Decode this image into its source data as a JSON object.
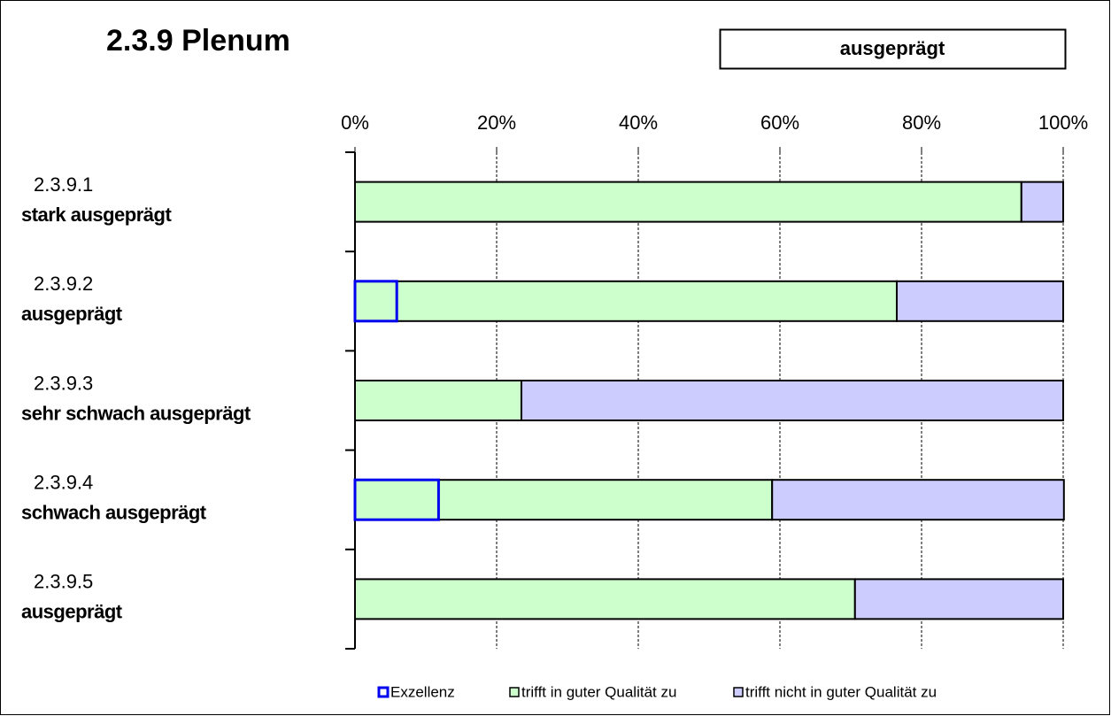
{
  "chart_data": {
    "type": "stacked-barh",
    "title": "2.3.9 Plenum",
    "subtitle": "ausgeprägt",
    "categories": [
      "2.3.9.1",
      "2.3.9.2",
      "2.3.9.3",
      "2.3.9.4",
      "2.3.9.5"
    ],
    "category_labels": [
      "stark ausgeprägt",
      "ausgeprägt",
      "sehr schwach ausgeprägt",
      "schwach ausgeprägt",
      "ausgeprägt"
    ],
    "series": [
      {
        "name": "Exzellenz",
        "color": "#ccffcc",
        "stroke": "#0000ee",
        "values": [
          0,
          5.9,
          0,
          11.8,
          0
        ]
      },
      {
        "name": "trifft in guter Qualität zu",
        "color": "#ccffcc",
        "stroke": "#000000",
        "values": [
          94.1,
          70.6,
          23.5,
          47.1,
          70.6
        ]
      },
      {
        "name": "trifft nicht in guter Qualität zu",
        "color": "#ccccff",
        "stroke": "#000000",
        "values": [
          5.9,
          23.5,
          76.5,
          41.2,
          29.4
        ]
      }
    ],
    "xlim": [
      0,
      100
    ],
    "xticks": [
      {
        "value": 0,
        "label": "0%"
      },
      {
        "value": 20,
        "label": "20%"
      },
      {
        "value": 40,
        "label": "40%"
      },
      {
        "value": 60,
        "label": "60%"
      },
      {
        "value": 80,
        "label": "80%"
      },
      {
        "value": 100,
        "label": "100%"
      }
    ],
    "grid": true,
    "legend": "bottom"
  }
}
